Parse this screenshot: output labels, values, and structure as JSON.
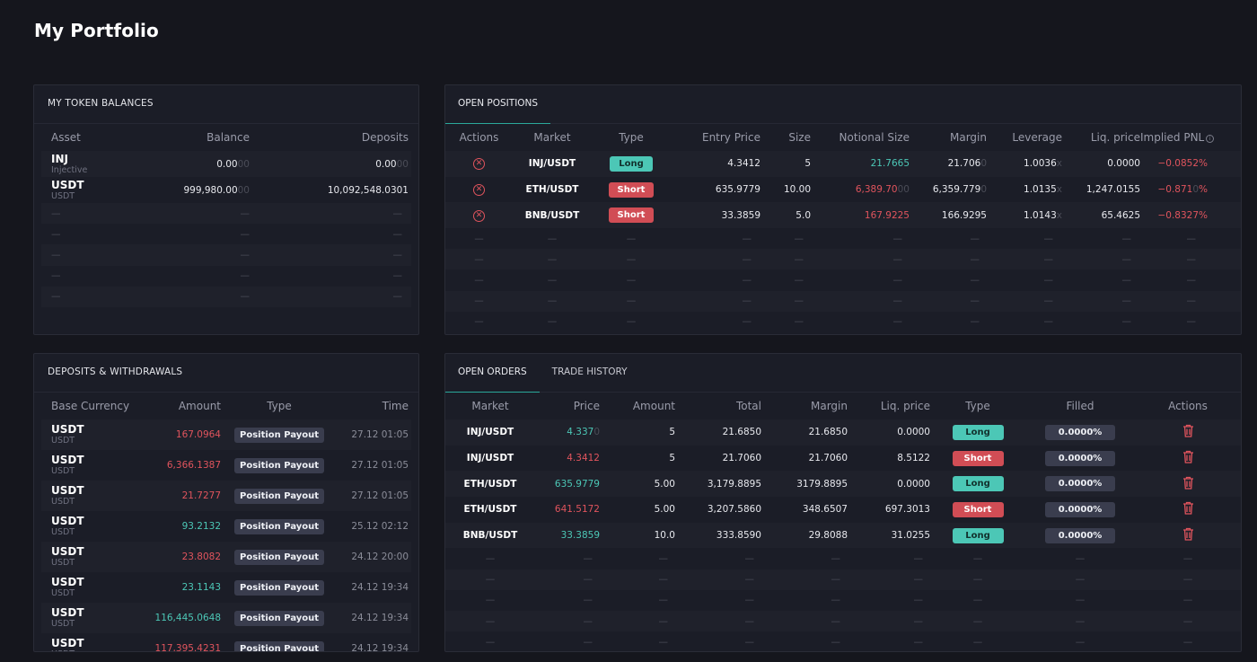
{
  "page": {
    "title": "My Portfolio"
  },
  "balances": {
    "title": "MY TOKEN BALANCES",
    "headers": {
      "asset": "Asset",
      "balance": "Balance",
      "deposits": "Deposits"
    },
    "rows": [
      {
        "asset": "INJ",
        "sub": "Injective",
        "balance": "0.00",
        "balance_faint": "00",
        "deposits": "0.00",
        "deposits_faint": "00"
      },
      {
        "asset": "USDT",
        "sub": "USDT",
        "balance": "999,980.00",
        "balance_faint": "00",
        "deposits": "10,092,548.0301",
        "deposits_faint": ""
      }
    ],
    "empty": "—"
  },
  "positions": {
    "tab": "OPEN POSITIONS",
    "headers": {
      "actions": "Actions",
      "market": "Market",
      "type": "Type",
      "entry": "Entry Price",
      "size": "Size",
      "notional": "Notional Size",
      "margin": "Margin",
      "leverage": "Leverage",
      "liq": "Liq. price",
      "pnl": "Implied PNL"
    },
    "rows": [
      {
        "market": "INJ/USDT",
        "type": "Long",
        "entry": "4.3412",
        "size": "5",
        "notional": "21.7665",
        "notional_faint": "",
        "margin": "21.706",
        "margin_faint": "0",
        "leverage": "1.0036",
        "lev_x": "x",
        "liq": "0.0000",
        "pnl": "−0.0852%",
        "pnl_faint": ""
      },
      {
        "market": "ETH/USDT",
        "type": "Short",
        "entry": "635.9779",
        "size": "10.00",
        "notional": "6,389.70",
        "notional_faint": "00",
        "margin": "6,359.779",
        "margin_faint": "0",
        "leverage": "1.0135",
        "lev_x": "x",
        "liq": "1,247.0155",
        "pnl": "−0.871",
        "pnl_faint": "0",
        "pnl_end": "%"
      },
      {
        "market": "BNB/USDT",
        "type": "Short",
        "entry": "33.3859",
        "size": "5.0",
        "notional": "167.9225",
        "notional_faint": "",
        "margin": "166.9295",
        "margin_faint": "",
        "leverage": "1.0143",
        "lev_x": "x",
        "liq": "65.4625",
        "pnl": "−0.8327%",
        "pnl_faint": ""
      }
    ],
    "empty": "—"
  },
  "deposits": {
    "title": "DEPOSITS & WITHDRAWALS",
    "headers": {
      "currency": "Base Currency",
      "amount": "Amount",
      "type": "Type",
      "time": "Time"
    },
    "rows": [
      {
        "asset": "USDT",
        "sub": "USDT",
        "amount": "167.0964",
        "color": "red",
        "type": "Position Payout",
        "time": "27.12 01:05"
      },
      {
        "asset": "USDT",
        "sub": "USDT",
        "amount": "6,366.1387",
        "color": "red",
        "type": "Position Payout",
        "time": "27.12 01:05"
      },
      {
        "asset": "USDT",
        "sub": "USDT",
        "amount": "21.7277",
        "color": "red",
        "type": "Position Payout",
        "time": "27.12 01:05"
      },
      {
        "asset": "USDT",
        "sub": "USDT",
        "amount": "93.2132",
        "color": "green",
        "type": "Position Payout",
        "time": "25.12 02:12"
      },
      {
        "asset": "USDT",
        "sub": "USDT",
        "amount": "23.8082",
        "color": "red",
        "type": "Position Payout",
        "time": "24.12 20:00"
      },
      {
        "asset": "USDT",
        "sub": "USDT",
        "amount": "23.1143",
        "color": "green",
        "type": "Position Payout",
        "time": "24.12 19:34"
      },
      {
        "asset": "USDT",
        "sub": "USDT",
        "amount": "116,445.0648",
        "color": "green",
        "type": "Position Payout",
        "time": "24.12 19:34"
      },
      {
        "asset": "USDT",
        "sub": "USDT",
        "amount": "117,395.4231",
        "color": "red",
        "type": "Position Payout",
        "time": "24.12 19:34"
      }
    ]
  },
  "orders": {
    "tabs": [
      "OPEN ORDERS",
      "TRADE HISTORY"
    ],
    "headers": {
      "market": "Market",
      "price": "Price",
      "amount": "Amount",
      "total": "Total",
      "margin": "Margin",
      "liq": "Liq. price",
      "type": "Type",
      "filled": "Filled",
      "actions": "Actions"
    },
    "rows": [
      {
        "market": "INJ/USDT",
        "price": "4.337",
        "price_faint": "0",
        "color": "green",
        "amount": "5",
        "total": "21.6850",
        "margin": "21.6850",
        "liq": "0.0000",
        "type": "Long",
        "filled": "0.0000%"
      },
      {
        "market": "INJ/USDT",
        "price": "4.3412",
        "price_faint": "",
        "color": "red",
        "amount": "5",
        "total": "21.7060",
        "margin": "21.7060",
        "liq": "8.5122",
        "type": "Short",
        "filled": "0.0000%"
      },
      {
        "market": "ETH/USDT",
        "price": "635.9779",
        "price_faint": "",
        "color": "green",
        "amount": "5.00",
        "total": "3,179.8895",
        "margin": "3179.8895",
        "liq": "0.0000",
        "type": "Long",
        "filled": "0.0000%"
      },
      {
        "market": "ETH/USDT",
        "price": "641.5172",
        "price_faint": "",
        "color": "red",
        "amount": "5.00",
        "total": "3,207.5860",
        "margin": "348.6507",
        "liq": "697.3013",
        "type": "Short",
        "filled": "0.0000%"
      },
      {
        "market": "BNB/USDT",
        "price": "33.3859",
        "price_faint": "",
        "color": "green",
        "amount": "10.0",
        "total": "333.8590",
        "margin": "29.8088",
        "liq": "31.0255",
        "type": "Long",
        "filled": "0.0000%"
      }
    ],
    "empty": "—"
  },
  "colors": {
    "bg": "#15161d",
    "panel": "#1b1d27",
    "green": "#4cc7b6",
    "red": "#e0545d",
    "accent": "#2aa89a"
  }
}
